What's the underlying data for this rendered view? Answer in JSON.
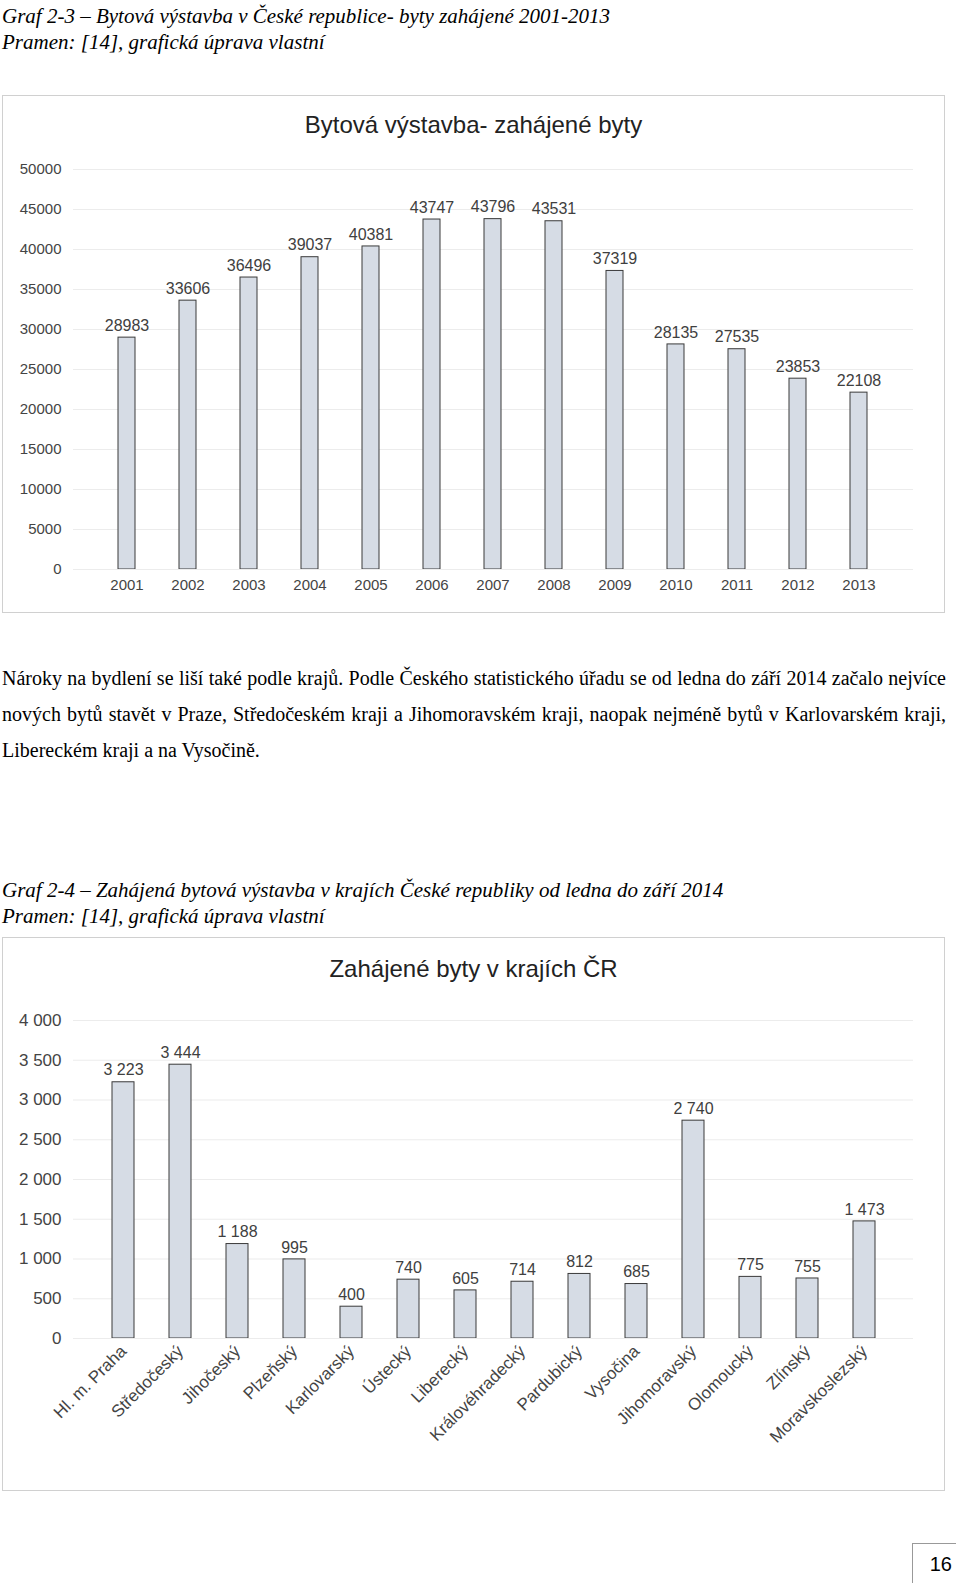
{
  "document": {
    "caption_1": "Graf 2-3 – Bytová výstavba v České republice- byty zahájené 2001-2013",
    "source_1": "Pramen: [14], grafická úprava vlastní",
    "paragraph": "Nároky na bydlení se liší také podle krajů. Podle Českého statistického úřadu se od ledna do září 2014 začalo nejvíce nových bytů stavět v Praze, Středočeském kraji a Jihomoravském kraji, naopak nejméně bytů v Karlovarském kraji, Libereckém kraji a na Vysočině.",
    "caption_2": "Graf 2-4 – Zahájená bytová výstavba v krajích České republiky od ledna do září 2014",
    "source_2": "Pramen: [14], grafická úprava vlastní",
    "page_number": "16"
  },
  "chart_data": [
    {
      "type": "bar",
      "title": "Bytová výstavba- zahájené byty",
      "categories": [
        "2001",
        "2002",
        "2003",
        "2004",
        "2005",
        "2006",
        "2007",
        "2008",
        "2009",
        "2010",
        "2011",
        "2012",
        "2013"
      ],
      "values": [
        28983,
        33606,
        36496,
        39037,
        40381,
        43747,
        43796,
        43531,
        37319,
        28135,
        27535,
        23853,
        22108
      ],
      "color": "#d6dce5",
      "ylim": [
        0,
        50000
      ],
      "yticks": [
        0,
        5000,
        10000,
        15000,
        20000,
        25000,
        30000,
        35000,
        40000,
        45000,
        50000
      ],
      "grid": true,
      "data_labels": true
    },
    {
      "type": "bar",
      "title": "Zahájené byty v krajích ČR",
      "categories": [
        "Hl. m. Praha",
        "Středočeský",
        "Jihočeský",
        "Plzeňský",
        "Karlovarský",
        "Ústecký",
        "Liberecký",
        "Královéhradecký",
        "Pardubický",
        "Vysočina",
        "Jihomoravský",
        "Olomoucký",
        "Zlínský",
        "Moravskoslezský"
      ],
      "values": [
        3223,
        3444,
        1188,
        995,
        400,
        740,
        605,
        714,
        812,
        685,
        2740,
        775,
        755,
        1473
      ],
      "value_labels": [
        "3 223",
        "3 444",
        "1 188",
        "995",
        "400",
        "740",
        "605",
        "714",
        "812",
        "685",
        "2 740",
        "775",
        "755",
        "1 473"
      ],
      "color": "#d6dce5",
      "ylim": [
        0,
        4000
      ],
      "yticks": [
        0,
        500,
        {
          "value": 1000,
          "label": "1 000"
        },
        {
          "value": 1500,
          "label": "1 500"
        },
        {
          "value": 2000,
          "label": "2 000"
        },
        {
          "value": 2500,
          "label": "2 500"
        },
        {
          "value": 3000,
          "label": "3 000"
        },
        {
          "value": 3500,
          "label": "3 500"
        },
        {
          "value": 4000,
          "label": "4 000"
        }
      ],
      "grid": true,
      "data_labels": true
    }
  ]
}
